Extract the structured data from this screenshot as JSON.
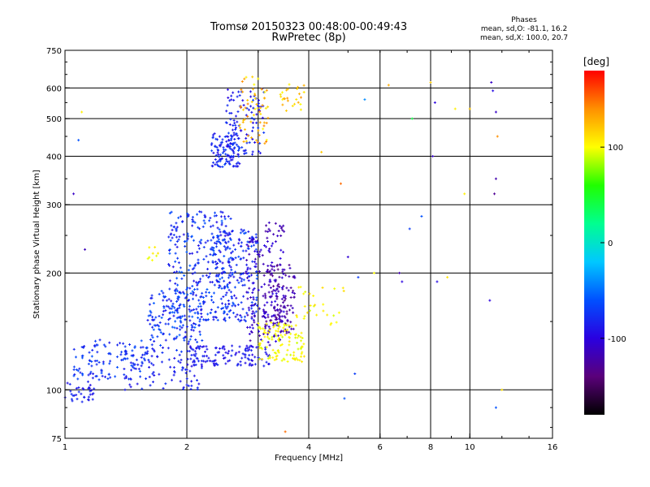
{
  "title": {
    "line1": "Tromsø 20150323 00:48:00-00:49:43",
    "line2": "RwPretec (8p)"
  },
  "phase_stats": {
    "heading": "Phases",
    "line1": "mean, sd,O: -81.1, 16.2",
    "line2": "mean, sd,X: 100.0, 20.7"
  },
  "colorbar": {
    "unit": "[deg]",
    "ticks": [
      {
        "value": 100,
        "label": "100"
      },
      {
        "value": 0,
        "label": "0"
      },
      {
        "value": -100,
        "label": "-100"
      }
    ],
    "range": [
      -180,
      180
    ],
    "colors": [
      "#000000",
      "#5a007a",
      "#2a00e0",
      "#0050ff",
      "#00c8ff",
      "#00ff90",
      "#20ff00",
      "#ffff00",
      "#ff9000",
      "#ff0000"
    ]
  },
  "chart_data": {
    "type": "scatter",
    "title": "Tromsø 20150323 00:48:00-00:49:43 RwPretec (8p)",
    "xlabel": "Frequency [MHz]",
    "ylabel": "Stationary phase Virtual Height [km]",
    "xscale": "log",
    "yscale": "log",
    "xlim": [
      1,
      16
    ],
    "ylim": [
      75,
      750
    ],
    "grid": true,
    "xticks": [
      1,
      2,
      4,
      6,
      8,
      10,
      16
    ],
    "xtick_labels": [
      "1",
      "2",
      "4",
      "6",
      "8",
      "10",
      "16"
    ],
    "xgrid": [
      2,
      3,
      4,
      6,
      8,
      10
    ],
    "yticks": [
      75,
      100,
      200,
      300,
      400,
      500,
      600,
      750
    ],
    "ytick_labels": [
      "75",
      "100",
      "200",
      "300",
      "400",
      "500",
      "600",
      "750"
    ],
    "ygrid": [
      100,
      200,
      300,
      400,
      500,
      600
    ],
    "series": [
      {
        "clusters": [
          {
            "f": [
              1.0,
              1.18
            ],
            "h": [
              92,
              105
            ],
            "n": 35,
            "phase": [
              -95,
              -75
            ]
          },
          {
            "f": [
              1.05,
              1.6
            ],
            "h": [
              106,
              135
            ],
            "n": 120,
            "phase": [
              -90,
              -60
            ]
          },
          {
            "f": [
              1.4,
              2.2
            ],
            "h": [
              100,
              125
            ],
            "n": 80,
            "phase": [
              -95,
              -75
            ]
          },
          {
            "f": [
              1.6,
              2.2
            ],
            "h": [
              125,
              180
            ],
            "n": 150,
            "phase": [
              -90,
              -55
            ]
          },
          {
            "f": [
              1.8,
              2.6
            ],
            "h": [
              150,
              290
            ],
            "n": 300,
            "phase": [
              -95,
              -55
            ]
          },
          {
            "f": [
              2.0,
              3.2
            ],
            "h": [
              115,
              130
            ],
            "n": 120,
            "phase": [
              -100,
              -80
            ]
          },
          {
            "f": [
              2.3,
              3.0
            ],
            "h": [
              150,
              260
            ],
            "n": 180,
            "phase": [
              -95,
              -60
            ]
          },
          {
            "f": [
              2.8,
              3.5
            ],
            "h": [
              130,
              250
            ],
            "n": 160,
            "phase": [
              -125,
              -95
            ]
          },
          {
            "f": [
              3.1,
              3.7
            ],
            "h": [
              140,
              210
            ],
            "n": 110,
            "phase": [
              -135,
              -110
            ]
          },
          {
            "f": [
              2.3,
              2.7
            ],
            "h": [
              375,
              460
            ],
            "n": 110,
            "phase": [
              -95,
              -65
            ]
          },
          {
            "f": [
              2.5,
              3.1
            ],
            "h": [
              400,
              600
            ],
            "n": 100,
            "phase": [
              -100,
              -70
            ]
          },
          {
            "f": [
              3.1,
              3.5
            ],
            "h": [
              250,
              270
            ],
            "n": 15,
            "phase": [
              -125,
              -110
            ]
          }
        ]
      },
      {
        "clusters": [
          {
            "f": [
              3.0,
              3.9
            ],
            "h": [
              118,
              150
            ],
            "n": 110,
            "phase": [
              90,
              110
            ]
          },
          {
            "f": [
              3.7,
              4.9
            ],
            "h": [
              145,
              185
            ],
            "n": 30,
            "phase": [
              90,
              115
            ]
          },
          {
            "f": [
              2.7,
              3.2
            ],
            "h": [
              430,
              650
            ],
            "n": 60,
            "phase": [
              100,
              145
            ]
          },
          {
            "f": [
              3.4,
              3.9
            ],
            "h": [
              520,
              620
            ],
            "n": 25,
            "phase": [
              100,
              140
            ]
          },
          {
            "f": [
              1.6,
              1.7
            ],
            "h": [
              215,
              235
            ],
            "n": 8,
            "phase": [
              95,
              110
            ]
          }
        ]
      },
      {
        "scatter": [
          [
            1.1,
            520,
            105
          ],
          [
            1.05,
            320,
            -110
          ],
          [
            1.08,
            440,
            -60
          ],
          [
            1.12,
            230,
            -115
          ],
          [
            3.5,
            78,
            150
          ],
          [
            4.9,
            95,
            -60
          ],
          [
            5.2,
            110,
            -70
          ],
          [
            6.3,
            610,
            130
          ],
          [
            7.2,
            500,
            40
          ],
          [
            8.0,
            620,
            120
          ],
          [
            8.1,
            400,
            -110
          ],
          [
            8.2,
            550,
            -100
          ],
          [
            9.2,
            530,
            105
          ],
          [
            9.7,
            320,
            105
          ],
          [
            10.0,
            530,
            120
          ],
          [
            11.3,
            620,
            -110
          ],
          [
            11.4,
            590,
            -95
          ],
          [
            11.6,
            520,
            -110
          ],
          [
            11.7,
            450,
            140
          ],
          [
            11.6,
            350,
            -120
          ],
          [
            11.5,
            320,
            -130
          ],
          [
            11.2,
            170,
            -100
          ],
          [
            11.6,
            90,
            -60
          ],
          [
            12.0,
            100,
            110
          ],
          [
            5.0,
            220,
            -105
          ],
          [
            5.3,
            195,
            -70
          ],
          [
            5.8,
            200,
            100
          ],
          [
            6.7,
            200,
            -120
          ],
          [
            7.1,
            260,
            -70
          ],
          [
            8.3,
            190,
            -95
          ],
          [
            8.8,
            195,
            110
          ],
          [
            5.5,
            560,
            -40
          ],
          [
            6.8,
            190,
            -100
          ],
          [
            7.6,
            280,
            -60
          ],
          [
            4.8,
            340,
            150
          ],
          [
            4.3,
            410,
            120
          ]
        ]
      }
    ]
  }
}
